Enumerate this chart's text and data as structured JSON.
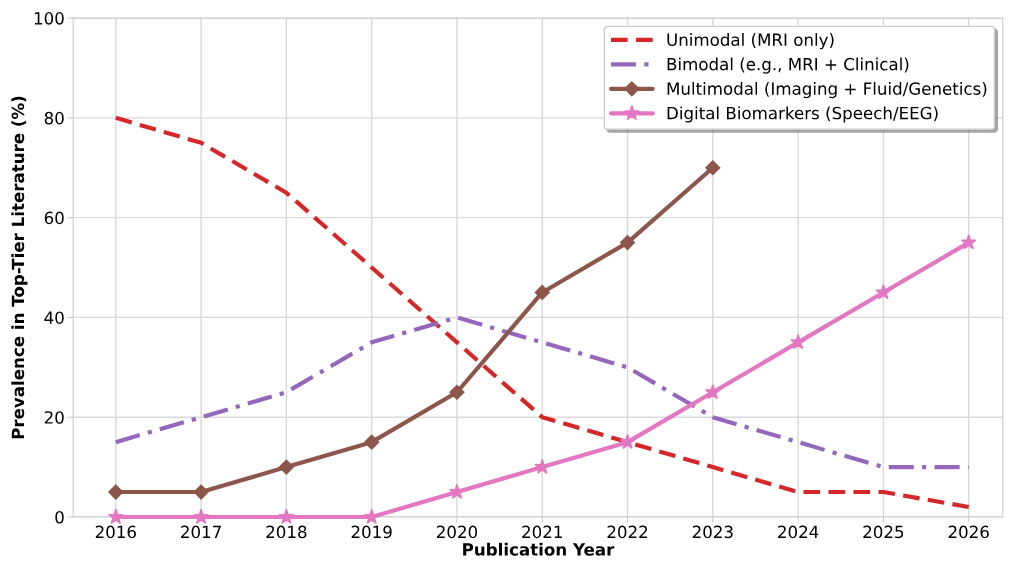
{
  "chart_data": {
    "type": "line",
    "xlabel": "Publication Year",
    "ylabel": "Prevalence in Top-Tier Literature (%)",
    "x": [
      2016,
      2017,
      2018,
      2019,
      2020,
      2021,
      2022,
      2023,
      2024,
      2025,
      2026
    ],
    "xlim": [
      2015.5,
      2026.4
    ],
    "xticks": [
      2016,
      2017,
      2018,
      2019,
      2020,
      2021,
      2022,
      2023,
      2024,
      2025,
      2026
    ],
    "ylim": [
      0,
      100
    ],
    "yticks": [
      0,
      20,
      40,
      60,
      80,
      100
    ],
    "grid": true,
    "legend": "top right",
    "series": [
      {
        "name": "Unimodal (MRI only)",
        "color": "#d62728",
        "line_style": "dashed",
        "marker": "none",
        "values": [
          80,
          75,
          65,
          50,
          35,
          20,
          15,
          10,
          5,
          5,
          2
        ]
      },
      {
        "name": "Bimodal (e.g., MRI + Clinical)",
        "color": "#9467bd",
        "line_style": "dashdot",
        "marker": "none",
        "values": [
          15,
          20,
          25,
          35,
          40,
          35,
          30,
          20,
          15,
          10,
          10
        ]
      },
      {
        "name": "Multimodal (Imaging + Fluid/Genetics)",
        "color": "#8c564b",
        "line_style": "solid",
        "marker": "diamond",
        "values": [
          5,
          5,
          10,
          15,
          25,
          45,
          55,
          70,
          null,
          null,
          null
        ]
      },
      {
        "name": "Digital Biomarkers (Speech/EEG)",
        "color": "#e377c2",
        "line_style": "solid",
        "marker": "star",
        "values": [
          0,
          0,
          0,
          0,
          5,
          10,
          15,
          25,
          35,
          45,
          55
        ]
      }
    ]
  }
}
